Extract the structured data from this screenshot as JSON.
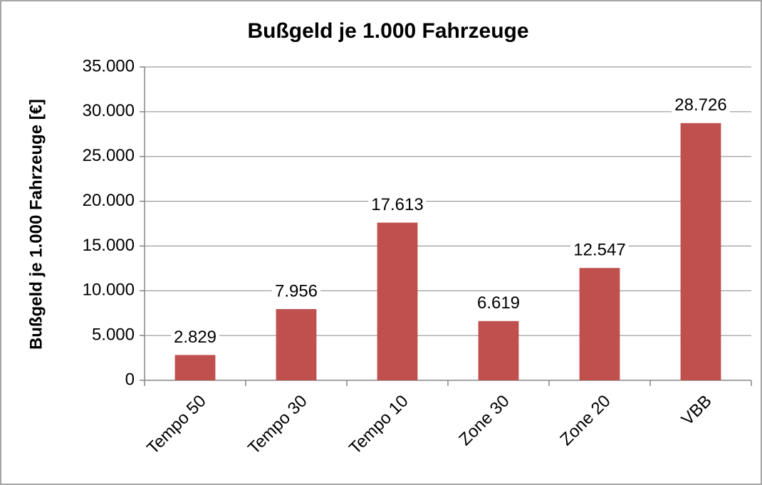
{
  "chart_data": {
    "type": "bar",
    "title": "Bußgeld je 1.000 Fahrzeuge",
    "y_label": "Bußgeld je 1.000 Fahrzeuge [€]",
    "categories": [
      "Tempo 50",
      "Tempo 30",
      "Tempo 10",
      "Zone 30",
      "Zone 20",
      "VBB"
    ],
    "values": [
      2829,
      7956,
      17613,
      6619,
      12547,
      28726
    ],
    "value_labels": [
      "2.829",
      "7.956",
      "17.613",
      "6.619",
      "12.547",
      "28.726"
    ],
    "color": "#c0504d",
    "ylim": [
      0,
      35000
    ],
    "yticks": [
      0,
      {
        "value": 5000,
        "label": "5.000"
      },
      {
        "value": 10000,
        "label": "10.000"
      },
      {
        "value": 15000,
        "label": "15.000"
      },
      {
        "value": 20000,
        "label": "20.000"
      },
      {
        "value": 25000,
        "label": "25.000"
      },
      {
        "value": 30000,
        "label": "30.000"
      },
      {
        "value": 35000,
        "label": "35.000"
      }
    ],
    "grid": true
  }
}
